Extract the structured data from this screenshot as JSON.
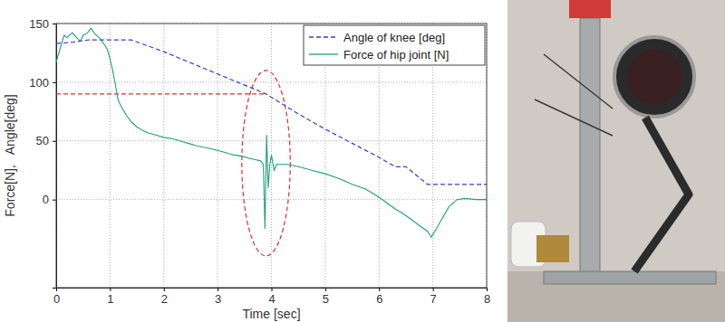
{
  "chart_data": {
    "type": "line",
    "x_label": "Time [sec]",
    "y_label": "Force[N],   Angle[deg]",
    "xlim": [
      0,
      8
    ],
    "xticks": [
      0,
      1,
      2,
      3,
      4,
      5,
      6,
      7,
      8
    ],
    "ylim": [
      -75,
      150
    ],
    "yticks": [
      0,
      50,
      100,
      150
    ],
    "grid": true,
    "legend": "upper right",
    "series": [
      {
        "name": "Angle of knee [deg]",
        "color": "#3a3ad0",
        "line_style": "dashed",
        "x": [
          0,
          0.3,
          0.6,
          1.4,
          2,
          3,
          3.9,
          4.5,
          5,
          5.5,
          6,
          6.3,
          6.5,
          6.9,
          8
        ],
        "values": [
          133,
          134,
          136,
          136,
          126,
          107,
          90,
          73,
          60,
          48,
          36,
          28,
          28,
          13,
          13
        ]
      },
      {
        "name": "Force of hip joint [N]",
        "color": "#1fa07a",
        "line_style": "solid",
        "x": [
          0,
          0.05,
          0.1,
          0.15,
          0.2,
          0.3,
          0.4,
          0.45,
          0.5,
          0.58,
          0.65,
          0.72,
          0.8,
          0.88,
          0.95,
          1.0,
          1.05,
          1.1,
          1.15,
          1.2,
          1.3,
          1.4,
          1.5,
          1.6,
          1.7,
          1.85,
          2.0,
          2.15,
          2.3,
          2.45,
          2.6,
          2.8,
          3.0,
          3.15,
          3.3,
          3.45,
          3.6,
          3.7,
          3.8,
          3.85,
          3.88,
          3.91,
          3.94,
          3.97,
          4.0,
          4.05,
          4.1,
          4.3,
          4.5,
          4.75,
          5.0,
          5.25,
          5.5,
          5.75,
          6.0,
          6.15,
          6.3,
          6.45,
          6.6,
          6.75,
          6.9,
          6.97,
          7.05,
          7.15,
          7.3,
          7.45,
          7.6,
          7.8,
          8.0
        ],
        "values": [
          117,
          125,
          133,
          140,
          138,
          142,
          137,
          135,
          140,
          142,
          146,
          141,
          138,
          133,
          128,
          120,
          110,
          98,
          85,
          80,
          72,
          66,
          62,
          59,
          57,
          55,
          53,
          52,
          50,
          48,
          46,
          44,
          42,
          40,
          38,
          37,
          35,
          34,
          33,
          30,
          -25,
          55,
          10,
          30,
          38,
          25,
          30,
          30,
          28,
          25,
          22,
          18,
          13,
          9,
          2,
          -3,
          -8,
          -12,
          -17,
          -22,
          -27,
          -32,
          -26,
          -18,
          -6,
          0,
          1,
          0,
          0
        ]
      }
    ],
    "annotations": [
      {
        "type": "hline",
        "y": 90,
        "x": [
          0,
          3.9
        ],
        "color": "#e03030",
        "line_style": "dashed"
      },
      {
        "type": "ellipse",
        "x": [
          3.45,
          4.35
        ],
        "y": [
          -48,
          110
        ],
        "color": "#e03030",
        "line_style": "dashed"
      }
    ]
  }
}
